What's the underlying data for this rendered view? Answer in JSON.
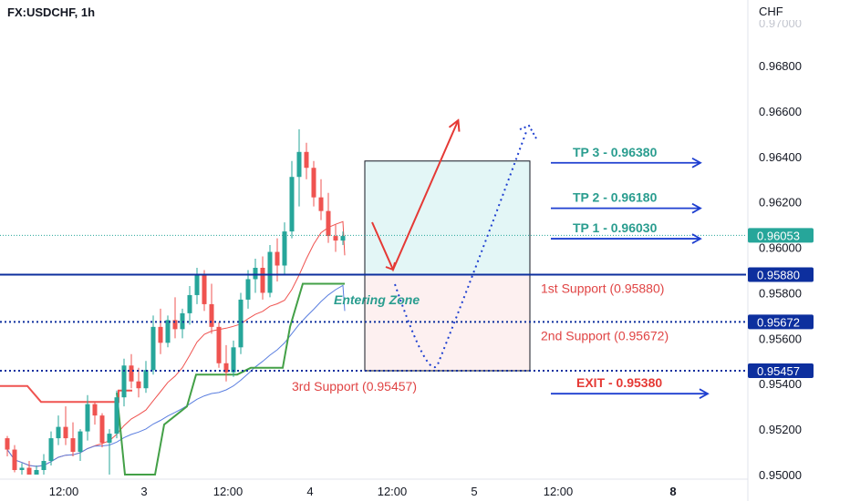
{
  "chart_data": {
    "type": "candlestick",
    "title": "FX:USDCHF, 1h",
    "currency": "CHF",
    "ylim": [
      0.95,
      0.9686
    ],
    "y_ticks": [
      "0.96800",
      "0.96600",
      "0.96400",
      "0.96200",
      "0.96000",
      "0.95800",
      "0.95600",
      "0.95400",
      "0.95200",
      "0.95000"
    ],
    "x_ticks": [
      "12:00",
      "3",
      "12:00",
      "4",
      "12:00",
      "5",
      "12:00",
      "8"
    ],
    "price_tags": [
      {
        "label": "0.96053",
        "value": 0.96053,
        "color": "#26a69a"
      },
      {
        "label": "0.95880",
        "value": 0.9588,
        "color": "#0d2f9e"
      },
      {
        "label": "0.95672",
        "value": 0.95672,
        "color": "#0d2f9e"
      },
      {
        "label": "0.95457",
        "value": 0.95457,
        "color": "#0d2f9e"
      }
    ],
    "targets": [
      {
        "label": "TP 3 - 0.96380",
        "value": 0.9638
      },
      {
        "label": "TP 2 - 0.96180",
        "value": 0.9618
      },
      {
        "label": "TP 1 - 0.96030",
        "value": 0.9603
      }
    ],
    "exit": {
      "label": "EXIT - 0.95380",
      "value": 0.9538
    },
    "supports": [
      {
        "label": "1st Support (0.95880)",
        "value": 0.9588
      },
      {
        "label": "2nd Support (0.95672)",
        "value": 0.95672
      },
      {
        "label": "3rd Support (0.95457)",
        "value": 0.95457
      }
    ],
    "zone_label": "Entering Zone",
    "target_box": [
      0.9588,
      0.9638
    ],
    "stop_box": [
      0.95457,
      0.9588
    ],
    "colors": {
      "up": "#26a69a",
      "down": "#ef5350",
      "level": "#0d2f9e",
      "arrow": "#1e3fd0",
      "target_text": "#2a9d8f",
      "support_text": "#e04444",
      "exit_text": "#e53935"
    },
    "candles": [
      [
        0.9516,
        0.9517,
        0.9508,
        0.9511
      ],
      [
        0.9511,
        0.9513,
        0.9501,
        0.9502
      ],
      [
        0.9502,
        0.9505,
        0.9498,
        0.9503
      ],
      [
        0.9503,
        0.9506,
        0.9499,
        0.95
      ],
      [
        0.95,
        0.9504,
        0.9496,
        0.9502
      ],
      [
        0.9502,
        0.9509,
        0.95,
        0.9506
      ],
      [
        0.9506,
        0.9519,
        0.9504,
        0.9516
      ],
      [
        0.9516,
        0.9526,
        0.9513,
        0.9521
      ],
      [
        0.9521,
        0.953,
        0.9513,
        0.9516
      ],
      [
        0.9516,
        0.9523,
        0.9508,
        0.951
      ],
      [
        0.951,
        0.952,
        0.9506,
        0.9519
      ],
      [
        0.9519,
        0.9535,
        0.9515,
        0.9531
      ],
      [
        0.9531,
        0.9532,
        0.9522,
        0.9526
      ],
      [
        0.9526,
        0.9527,
        0.9512,
        0.9514
      ],
      [
        0.9514,
        0.952,
        0.95,
        0.9518
      ],
      [
        0.9518,
        0.9537,
        0.9516,
        0.9534
      ],
      [
        0.9534,
        0.9551,
        0.953,
        0.9548
      ],
      [
        0.9548,
        0.9553,
        0.9538,
        0.9541
      ],
      [
        0.9541,
        0.9547,
        0.9534,
        0.9538
      ],
      [
        0.9538,
        0.955,
        0.9536,
        0.9546
      ],
      [
        0.9546,
        0.957,
        0.9544,
        0.9565
      ],
      [
        0.9565,
        0.9573,
        0.9553,
        0.9558
      ],
      [
        0.9558,
        0.957,
        0.9556,
        0.9568
      ],
      [
        0.9568,
        0.9578,
        0.956,
        0.9564
      ],
      [
        0.9564,
        0.9573,
        0.956,
        0.9571
      ],
      [
        0.9571,
        0.9583,
        0.9566,
        0.9579
      ],
      [
        0.9579,
        0.9591,
        0.9575,
        0.9588
      ],
      [
        0.9588,
        0.959,
        0.9572,
        0.9575
      ],
      [
        0.9575,
        0.9584,
        0.9562,
        0.9565
      ],
      [
        0.9565,
        0.9567,
        0.9547,
        0.9549
      ],
      [
        0.9549,
        0.9557,
        0.9541,
        0.9545
      ],
      [
        0.9545,
        0.9559,
        0.9543,
        0.9556
      ],
      [
        0.9556,
        0.958,
        0.9553,
        0.9577
      ],
      [
        0.9577,
        0.959,
        0.9573,
        0.9586
      ],
      [
        0.9586,
        0.9595,
        0.958,
        0.9591
      ],
      [
        0.9591,
        0.9596,
        0.9577,
        0.958
      ],
      [
        0.958,
        0.9601,
        0.9578,
        0.9598
      ],
      [
        0.9598,
        0.9604,
        0.9585,
        0.9592
      ],
      [
        0.9592,
        0.9611,
        0.9588,
        0.9607
      ],
      [
        0.9607,
        0.9638,
        0.9604,
        0.9631
      ],
      [
        0.9631,
        0.9652,
        0.9618,
        0.9642
      ],
      [
        0.9642,
        0.9646,
        0.963,
        0.9635
      ],
      [
        0.9635,
        0.9638,
        0.9618,
        0.9622
      ],
      [
        0.9622,
        0.963,
        0.9612,
        0.9616
      ],
      [
        0.9616,
        0.9624,
        0.9602,
        0.9605
      ],
      [
        0.9605,
        0.961,
        0.9598,
        0.9603
      ],
      [
        0.9603,
        0.9607,
        0.9601,
        0.9605
      ]
    ]
  }
}
